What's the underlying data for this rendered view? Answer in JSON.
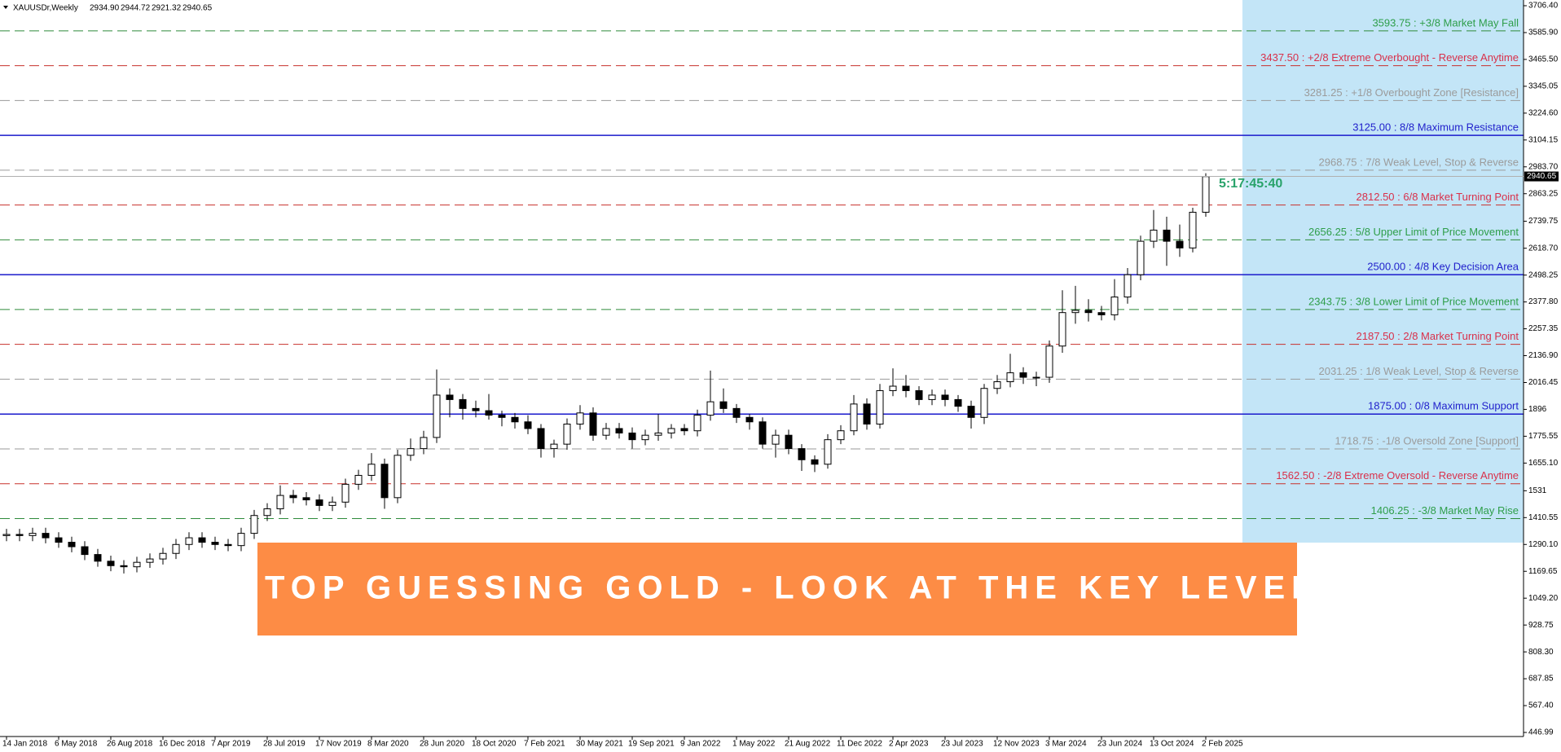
{
  "chart_data": {
    "type": "candlestick",
    "header": {
      "symbol": "XAUUSDr,Weekly",
      "ohlc": [
        {
          "value": 2934.9,
          "label": "2934.90"
        },
        {
          "value": 2944.72,
          "label": "2944.72"
        },
        {
          "value": 2921.32,
          "label": "2921.32"
        },
        {
          "value": 2940.65,
          "label": "2940.65"
        }
      ]
    },
    "banner": "STOP GUESSING GOLD - LOOK AT THE KEY LEVEL",
    "timer": "5:17:45:40",
    "current_price": {
      "value": 2940.65,
      "label": "2940.65"
    },
    "x_labels": [
      "14 Jan 2018",
      "6 May 2018",
      "26 Aug 2018",
      "16 Dec 2018",
      "7 Apr 2019",
      "28 Jul 2019",
      "17 Nov 2019",
      "8 Mar 2020",
      "28 Jun 2020",
      "18 Oct 2020",
      "7 Feb 2021",
      "30 May 2021",
      "19 Sep 2021",
      "9 Jan 2022",
      "1 May 2022",
      "21 Aug 2022",
      "11 Dec 2022",
      "2 Apr 2023",
      "23 Jul 2023",
      "12 Nov 2023",
      "3 Mar 2024",
      "23 Jun 2024",
      "13 Oct 2024",
      "2 Feb 2025"
    ],
    "ylim": [
      446.99,
      3706.4
    ],
    "yticks": [
      {
        "value": 446.99,
        "label": "446.99"
      },
      {
        "value": 567.4,
        "label": "567.40"
      },
      {
        "value": 687.85,
        "label": "687.85"
      },
      {
        "value": 808.3,
        "label": "808.30"
      },
      {
        "value": 928.75,
        "label": "928.75"
      },
      {
        "value": 1049.2,
        "label": "1049.20"
      },
      {
        "value": 1169.65,
        "label": "1169.65"
      },
      {
        "value": 1290.1,
        "label": "1290.10"
      },
      {
        "value": 1410.55,
        "label": "1410.55"
      },
      1531,
      {
        "value": 1655.1,
        "label": "1655.10"
      },
      {
        "value": 1775.55,
        "label": "1775.55"
      },
      1896,
      {
        "value": 2016.45,
        "label": "2016.45"
      },
      {
        "value": 2136.9,
        "label": "2136.90"
      },
      {
        "value": 2257.35,
        "label": "2257.35"
      },
      {
        "value": 2377.8,
        "label": "2377.80"
      },
      {
        "value": 2498.25,
        "label": "2498.25"
      },
      {
        "value": 2618.7,
        "label": "2618.70"
      },
      {
        "value": 2739.75,
        "label": "2739.75"
      },
      {
        "value": 2863.25,
        "label": "2863.25"
      },
      {
        "value": 2983.7,
        "label": "2983.70"
      },
      {
        "value": 3104.15,
        "label": "3104.15"
      },
      {
        "value": 3224.6,
        "label": "3224.60"
      },
      {
        "value": 3345.05,
        "label": "3345.05"
      },
      {
        "value": 3465.5,
        "label": "3465.50"
      },
      {
        "value": 3585.9,
        "label": "3585.90"
      },
      {
        "value": 3706.4,
        "label": "3706.40"
      }
    ],
    "levels": [
      {
        "value": 3593.75,
        "label": "3593.75 : +3/8 Market May Fall",
        "color": "#2e8b3a",
        "text_color": "#2e9e4a",
        "dashed": true
      },
      {
        "value": 3437.5,
        "label": "3437.50 : +2/8 Extreme Overbought - Reverse Anytime",
        "color": "#c8302c",
        "text_color": "#d9304a",
        "dashed": true
      },
      {
        "value": 3281.25,
        "label": "3281.25 : +1/8 Overbought Zone [Resistance]",
        "color": "#9a9a9a",
        "text_color": "#9b9b9b",
        "dashed": true
      },
      {
        "value": 3125,
        "label": "3125.00 : 8/8 Maximum Resistance",
        "color": "#1a1acc",
        "text_color": "#2222cc",
        "dashed": false
      },
      {
        "value": 2968.75,
        "label": "2968.75 : 7/8 Weak Level, Stop & Reverse",
        "color": "#9a9a9a",
        "text_color": "#9b9b9b",
        "dashed": true
      },
      {
        "value": 2812.5,
        "label": "2812.50 : 6/8 Market Turning Point",
        "color": "#c8302c",
        "text_color": "#d9304a",
        "dashed": true
      },
      {
        "value": 2656.25,
        "label": "2656.25 : 5/8 Upper Limit of Price Movement",
        "color": "#2e8b3a",
        "text_color": "#2e9e4a",
        "dashed": true
      },
      {
        "value": 2500,
        "label": "2500.00 : 4/8 Key Decision Area",
        "color": "#1a1acc",
        "text_color": "#2222cc",
        "dashed": false
      },
      {
        "value": 2343.75,
        "label": "2343.75 : 3/8 Lower Limit of Price Movement",
        "color": "#2e8b3a",
        "text_color": "#2e9e4a",
        "dashed": true
      },
      {
        "value": 2187.5,
        "label": "2187.50 : 2/8 Market Turning Point",
        "color": "#c8302c",
        "text_color": "#d9304a",
        "dashed": true
      },
      {
        "value": 2031.25,
        "label": "2031.25 : 1/8 Weak Level, Stop & Reverse",
        "color": "#9a9a9a",
        "text_color": "#9b9b9b",
        "dashed": true
      },
      {
        "value": 1875,
        "label": "1875.00 : 0/8 Maximum Support",
        "color": "#1a1acc",
        "text_color": "#2222cc",
        "dashed": false
      },
      {
        "value": 1718.75,
        "label": "1718.75 : -1/8 Oversold Zone [Support]",
        "color": "#9a9a9a",
        "text_color": "#9b9b9b",
        "dashed": true
      },
      {
        "value": 1562.5,
        "label": "1562.50 : -2/8 Extreme Oversold - Reverse Anytime",
        "color": "#c8302c",
        "text_color": "#d9304a",
        "dashed": true
      },
      {
        "value": 1406.25,
        "label": "1406.25 : -3/8 Market May Rise",
        "color": "#2e8b3a",
        "text_color": "#2e9e4a",
        "dashed": true
      }
    ],
    "candles": {
      "open": [
        1330,
        1335,
        1330,
        1340,
        1320,
        1300,
        1280,
        1245,
        1215,
        1195,
        1190,
        1210,
        1225,
        1250,
        1290,
        1320,
        1300,
        1290,
        1285,
        1340,
        1420,
        1450,
        1510,
        1500,
        1490,
        1465,
        1480,
        1560,
        1600,
        1650,
        1500,
        1690,
        1720,
        1770,
        1960,
        1940,
        1900,
        1890,
        1870,
        1860,
        1840,
        1810,
        1720,
        1740,
        1830,
        1880,
        1780,
        1810,
        1790,
        1760,
        1780,
        1790,
        1810,
        1800,
        1870,
        1930,
        1900,
        1860,
        1840,
        1740,
        1780,
        1720,
        1670,
        1650,
        1760,
        1800,
        1920,
        1830,
        1980,
        2000,
        1980,
        1940,
        1960,
        1940,
        1910,
        1860,
        1990,
        2020,
        2060,
        2040,
        2040,
        2180,
        2330,
        2340,
        2330,
        2320,
        2400,
        2500,
        2650,
        2700,
        2650,
        2620,
        2780
      ],
      "high": [
        1360,
        1360,
        1365,
        1365,
        1345,
        1325,
        1305,
        1270,
        1240,
        1220,
        1235,
        1250,
        1275,
        1315,
        1345,
        1345,
        1325,
        1315,
        1365,
        1445,
        1475,
        1555,
        1535,
        1525,
        1515,
        1505,
        1585,
        1625,
        1700,
        1675,
        1715,
        1765,
        1800,
        2075,
        1990,
        1965,
        1935,
        1965,
        1890,
        1880,
        1870,
        1830,
        1760,
        1855,
        1915,
        1905,
        1835,
        1835,
        1815,
        1805,
        1875,
        1830,
        1830,
        1895,
        2070,
        1990,
        1920,
        1875,
        1860,
        1805,
        1805,
        1740,
        1690,
        1785,
        1825,
        1960,
        1945,
        2010,
        2080,
        2050,
        2000,
        1985,
        1985,
        1960,
        1935,
        2010,
        2050,
        2145,
        2085,
        2065,
        2205,
        2430,
        2450,
        2390,
        2360,
        2480,
        2530,
        2675,
        2790,
        2760,
        2725,
        2800,
        2955
      ],
      "low": [
        1305,
        1305,
        1305,
        1295,
        1275,
        1255,
        1220,
        1190,
        1170,
        1160,
        1165,
        1185,
        1200,
        1225,
        1265,
        1275,
        1265,
        1260,
        1260,
        1315,
        1395,
        1425,
        1475,
        1465,
        1440,
        1440,
        1455,
        1535,
        1575,
        1450,
        1475,
        1665,
        1695,
        1745,
        1860,
        1850,
        1860,
        1850,
        1820,
        1810,
        1785,
        1680,
        1680,
        1715,
        1805,
        1755,
        1760,
        1765,
        1720,
        1735,
        1755,
        1765,
        1780,
        1775,
        1845,
        1880,
        1835,
        1805,
        1720,
        1680,
        1695,
        1620,
        1615,
        1630,
        1740,
        1780,
        1805,
        1810,
        1955,
        1950,
        1915,
        1915,
        1910,
        1885,
        1810,
        1830,
        1965,
        1995,
        2010,
        2000,
        2015,
        2150,
        2280,
        2290,
        2295,
        2295,
        2370,
        2475,
        2620,
        2540,
        2580,
        2600,
        2760
      ],
      "close": [
        1335,
        1330,
        1340,
        1320,
        1300,
        1280,
        1245,
        1215,
        1195,
        1190,
        1210,
        1225,
        1250,
        1290,
        1320,
        1300,
        1290,
        1285,
        1340,
        1420,
        1450,
        1510,
        1500,
        1490,
        1465,
        1480,
        1560,
        1600,
        1650,
        1500,
        1690,
        1720,
        1770,
        1960,
        1940,
        1900,
        1890,
        1870,
        1860,
        1840,
        1810,
        1720,
        1740,
        1830,
        1880,
        1780,
        1810,
        1790,
        1760,
        1780,
        1790,
        1810,
        1800,
        1870,
        1930,
        1900,
        1860,
        1840,
        1740,
        1780,
        1720,
        1670,
        1650,
        1760,
        1800,
        1920,
        1830,
        1980,
        2000,
        1980,
        1940,
        1960,
        1940,
        1910,
        1860,
        1990,
        2020,
        2060,
        2040,
        2040,
        2180,
        2330,
        2340,
        2330,
        2320,
        2400,
        2500,
        2650,
        2700,
        2650,
        2620,
        2780,
        2940
      ]
    },
    "up_color": "#ffffff",
    "down_color": "#000000",
    "wick_color": "#000000",
    "zone_color": "#c3e5f7",
    "banner_color": "#fd8c45",
    "timer_color": "#2aa36b"
  }
}
